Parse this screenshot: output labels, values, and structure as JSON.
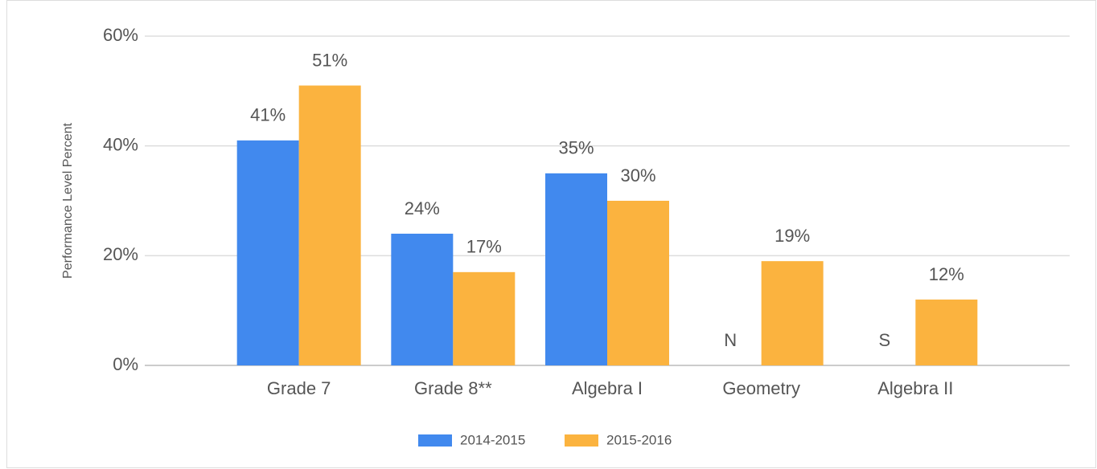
{
  "chart_data": {
    "type": "bar",
    "y_axis_label": "Performance Level Percent",
    "categories": [
      "Grade 7",
      "Grade 8**",
      "Algebra I",
      "Geometry",
      "Algebra II"
    ],
    "series": [
      {
        "name": "2014-2015",
        "color": "#4189ee",
        "values": [
          41,
          24,
          35,
          null,
          null
        ],
        "value_labels": [
          "41%",
          "24%",
          "35%",
          "N",
          "S"
        ]
      },
      {
        "name": "2015-2016",
        "color": "#fbb33f",
        "values": [
          51,
          17,
          30,
          19,
          12
        ],
        "value_labels": [
          "51%",
          "17%",
          "30%",
          "19%",
          "12%"
        ]
      }
    ],
    "ylim": [
      0,
      60
    ],
    "yticks": [
      {
        "value": 0,
        "label": "0%"
      },
      {
        "value": 20,
        "label": "20%"
      },
      {
        "value": 40,
        "label": "40%"
      },
      {
        "value": 60,
        "label": "60%"
      }
    ],
    "grid": true,
    "legend": "bottom"
  }
}
